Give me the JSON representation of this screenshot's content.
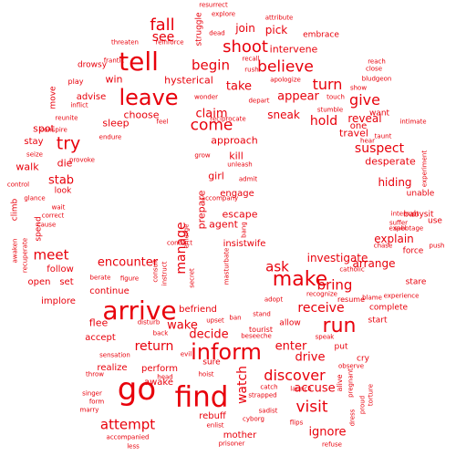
{
  "color": "#e8000b",
  "words": [
    {
      "text": "go",
      "fs": 34
    },
    {
      "text": "find",
      "fs": 31
    },
    {
      "text": "arrive",
      "fs": 28
    },
    {
      "text": "inform",
      "fs": 24
    },
    {
      "text": "tell",
      "fs": 28
    },
    {
      "text": "leave",
      "fs": 24
    },
    {
      "text": "make",
      "fs": 22
    },
    {
      "text": "run",
      "fs": 22
    },
    {
      "text": "shoot",
      "fs": 18
    },
    {
      "text": "fall",
      "fs": 18
    },
    {
      "text": "believe",
      "fs": 17
    },
    {
      "text": "try",
      "fs": 19
    },
    {
      "text": "begin",
      "fs": 15
    },
    {
      "text": "turn",
      "fs": 16
    },
    {
      "text": "give",
      "fs": 16
    },
    {
      "text": "come",
      "fs": 17
    },
    {
      "text": "discover",
      "fs": 16
    },
    {
      "text": "visit",
      "fs": 17
    },
    {
      "text": "meet",
      "fs": 15
    },
    {
      "text": "manage",
      "fs": 14
    },
    {
      "text": "bring",
      "fs": 15
    },
    {
      "text": "ask",
      "fs": 15
    },
    {
      "text": "receive",
      "fs": 14
    },
    {
      "text": "attempt",
      "fs": 15
    },
    {
      "text": "return",
      "fs": 14
    },
    {
      "text": "watch",
      "fs": 14
    },
    {
      "text": "suspect",
      "fs": 14
    },
    {
      "text": "hold",
      "fs": 14
    },
    {
      "text": "claim",
      "fs": 13
    },
    {
      "text": "see",
      "fs": 14
    },
    {
      "text": "take",
      "fs": 13
    },
    {
      "text": "appear",
      "fs": 13
    },
    {
      "text": "stab",
      "fs": 13
    },
    {
      "text": "encounter",
      "fs": 13
    },
    {
      "text": "enter",
      "fs": 13
    },
    {
      "text": "drive",
      "fs": 13
    },
    {
      "text": "accuse",
      "fs": 13
    },
    {
      "text": "ignore",
      "fs": 13
    },
    {
      "text": "wake",
      "fs": 13
    },
    {
      "text": "decide",
      "fs": 13
    },
    {
      "text": "investigate",
      "fs": 12
    },
    {
      "text": "arrange",
      "fs": 12
    },
    {
      "text": "explain",
      "fs": 12
    },
    {
      "text": "hiding",
      "fs": 12
    },
    {
      "text": "desperate",
      "fs": 11
    },
    {
      "text": "reveal",
      "fs": 12
    },
    {
      "text": "travel",
      "fs": 11
    },
    {
      "text": "sneak",
      "fs": 12
    },
    {
      "text": "join",
      "fs": 12
    },
    {
      "text": "pick",
      "fs": 12
    },
    {
      "text": "intervene",
      "fs": 11
    },
    {
      "text": "win",
      "fs": 11
    },
    {
      "text": "choose",
      "fs": 11
    },
    {
      "text": "sleep",
      "fs": 11
    },
    {
      "text": "spot",
      "fs": 11
    },
    {
      "text": "walk",
      "fs": 11
    },
    {
      "text": "die",
      "fs": 11
    },
    {
      "text": "stay",
      "fs": 10
    },
    {
      "text": "kill",
      "fs": 11
    },
    {
      "text": "approach",
      "fs": 11
    },
    {
      "text": "girl",
      "fs": 11
    },
    {
      "text": "engage",
      "fs": 10
    },
    {
      "text": "escape",
      "fs": 11
    },
    {
      "text": "agent",
      "fs": 11
    },
    {
      "text": "insistwife",
      "fs": 10
    },
    {
      "text": "prepare",
      "fs": 11
    },
    {
      "text": "follow",
      "fs": 10
    },
    {
      "text": "open",
      "fs": 10
    },
    {
      "text": "set",
      "fs": 10
    },
    {
      "text": "implore",
      "fs": 10
    },
    {
      "text": "continue",
      "fs": 10
    },
    {
      "text": "flee",
      "fs": 11
    },
    {
      "text": "accept",
      "fs": 10
    },
    {
      "text": "realize",
      "fs": 10
    },
    {
      "text": "perform",
      "fs": 10
    },
    {
      "text": "awake",
      "fs": 10
    },
    {
      "text": "befriend",
      "fs": 10
    },
    {
      "text": "mother",
      "fs": 10
    },
    {
      "text": "rebuff",
      "fs": 10
    },
    {
      "text": "hysterical",
      "fs": 11
    },
    {
      "text": "advise",
      "fs": 10
    },
    {
      "text": "look",
      "fs": 9
    },
    {
      "text": "spend",
      "fs": 9
    },
    {
      "text": "climb",
      "fs": 9
    },
    {
      "text": "embrace",
      "fs": 9
    },
    {
      "text": "struggle",
      "fs": 9
    },
    {
      "text": "drowsy",
      "fs": 9
    },
    {
      "text": "play",
      "fs": 8
    },
    {
      "text": "move",
      "fs": 9
    },
    {
      "text": "want",
      "fs": 9
    },
    {
      "text": "one",
      "fs": 10
    },
    {
      "text": "unable",
      "fs": 9
    },
    {
      "text": "babysit",
      "fs": 9
    },
    {
      "text": "force",
      "fs": 9
    },
    {
      "text": "use",
      "fs": 9
    },
    {
      "text": "stare",
      "fs": 9
    },
    {
      "text": "resume",
      "fs": 8
    },
    {
      "text": "complete",
      "fs": 9
    },
    {
      "text": "start",
      "fs": 9
    },
    {
      "text": "allow",
      "fs": 9
    },
    {
      "text": "put",
      "fs": 9
    },
    {
      "text": "cry",
      "fs": 9
    },
    {
      "text": "sure",
      "fs": 9
    },
    {
      "text": "alive",
      "fs": 8
    },
    {
      "text": "pregnant",
      "fs": 7
    },
    {
      "text": "adopt",
      "fs": 7
    },
    {
      "text": "stand",
      "fs": 7
    },
    {
      "text": "bang",
      "fs": 7
    },
    {
      "text": "ban",
      "fs": 7
    },
    {
      "text": "tourist",
      "fs": 8
    },
    {
      "text": "beseeche",
      "fs": 7
    },
    {
      "text": "speak",
      "fs": 7
    },
    {
      "text": "observe",
      "fs": 7
    },
    {
      "text": "hoist",
      "fs": 7
    },
    {
      "text": "head",
      "fs": 7
    },
    {
      "text": "throw",
      "fs": 7
    },
    {
      "text": "singer",
      "fs": 7
    },
    {
      "text": "form",
      "fs": 7
    },
    {
      "text": "marry",
      "fs": 7
    },
    {
      "text": "accompanied",
      "fs": 7
    },
    {
      "text": "less",
      "fs": 7
    },
    {
      "text": "enlist",
      "fs": 7
    },
    {
      "text": "cyborg",
      "fs": 7
    },
    {
      "text": "prisoner",
      "fs": 7
    },
    {
      "text": "refuse",
      "fs": 7
    },
    {
      "text": "flips",
      "fs": 7
    },
    {
      "text": "sadist",
      "fs": 7
    },
    {
      "text": "catch",
      "fs": 7
    },
    {
      "text": "strapped",
      "fs": 7
    },
    {
      "text": "launch",
      "fs": 7
    },
    {
      "text": "dress",
      "fs": 7
    },
    {
      "text": "proud",
      "fs": 7
    },
    {
      "text": "torture",
      "fs": 7
    },
    {
      "text": "evil",
      "fs": 7
    },
    {
      "text": "sensation",
      "fs": 7
    },
    {
      "text": "disturb",
      "fs": 7
    },
    {
      "text": "upset",
      "fs": 7
    },
    {
      "text": "back",
      "fs": 7
    },
    {
      "text": "berate",
      "fs": 7
    },
    {
      "text": "figure",
      "fs": 7
    },
    {
      "text": "consult",
      "fs": 7
    },
    {
      "text": "instruct",
      "fs": 7
    },
    {
      "text": "conduct",
      "fs": 7
    },
    {
      "text": "secret",
      "fs": 7
    },
    {
      "text": "masturbate",
      "fs": 7
    },
    {
      "text": "recognize",
      "fs": 7
    },
    {
      "text": "catholic",
      "fs": 7
    },
    {
      "text": "blame",
      "fs": 7
    },
    {
      "text": "experience",
      "fs": 7
    },
    {
      "text": "chase",
      "fs": 7
    },
    {
      "text": "push",
      "fs": 7
    },
    {
      "text": "sabotage",
      "fs": 7
    },
    {
      "text": "expel",
      "fs": 7
    },
    {
      "text": "suffer",
      "fs": 7
    },
    {
      "text": "experiment",
      "fs": 7
    },
    {
      "text": "intimate",
      "fs": 7
    },
    {
      "text": "taunt",
      "fs": 7
    },
    {
      "text": "interrupt",
      "fs": 7
    },
    {
      "text": "hear",
      "fs": 7
    },
    {
      "text": "stumble",
      "fs": 7
    },
    {
      "text": "touch",
      "fs": 7
    },
    {
      "text": "show",
      "fs": 7
    },
    {
      "text": "reach",
      "fs": 7
    },
    {
      "text": "close",
      "fs": 7
    },
    {
      "text": "bludgeon",
      "fs": 7
    },
    {
      "text": "apologize",
      "fs": 7
    },
    {
      "text": "depart",
      "fs": 7
    },
    {
      "text": "reciprocate",
      "fs": 7
    },
    {
      "text": "wonder",
      "fs": 7
    },
    {
      "text": "recall",
      "fs": 7
    },
    {
      "text": "rush",
      "fs": 7
    },
    {
      "text": "attribute",
      "fs": 7
    },
    {
      "text": "resurrect",
      "fs": 7
    },
    {
      "text": "explore",
      "fs": 7
    },
    {
      "text": "dead",
      "fs": 7
    },
    {
      "text": "threaten",
      "fs": 7
    },
    {
      "text": "reinforce",
      "fs": 7
    },
    {
      "text": "frantic",
      "fs": 7
    },
    {
      "text": "inflict",
      "fs": 7
    },
    {
      "text": "reunite",
      "fs": 7
    },
    {
      "text": "conspire",
      "fs": 7
    },
    {
      "text": "endure",
      "fs": 7
    },
    {
      "text": "feel",
      "fs": 7
    },
    {
      "text": "seize",
      "fs": 7
    },
    {
      "text": "provoke",
      "fs": 7
    },
    {
      "text": "control",
      "fs": 7
    },
    {
      "text": "glance",
      "fs": 7
    },
    {
      "text": "wait",
      "fs": 7
    },
    {
      "text": "correct",
      "fs": 7
    },
    {
      "text": "awaken",
      "fs": 7
    },
    {
      "text": "recuperate",
      "fs": 7
    },
    {
      "text": "cause",
      "fs": 7
    },
    {
      "text": "grow",
      "fs": 7
    },
    {
      "text": "unleash",
      "fs": 7
    },
    {
      "text": "admit",
      "fs": 7
    },
    {
      "text": "accompany",
      "fs": 7
    },
    {
      "text": "emerge",
      "fs": 7
    }
  ]
}
